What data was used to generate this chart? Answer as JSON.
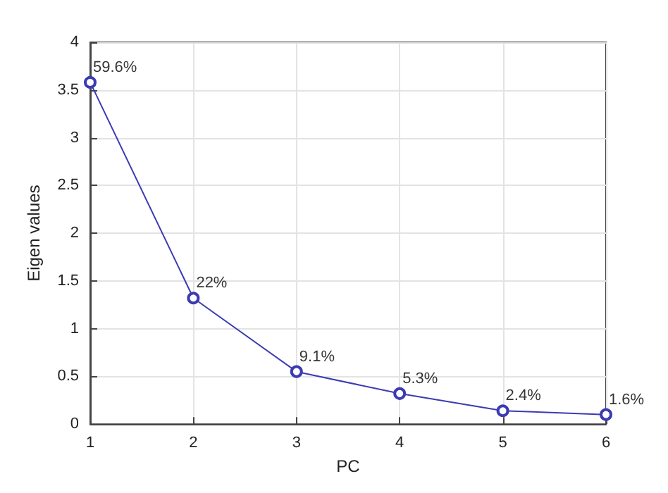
{
  "chart_data": {
    "type": "line",
    "xlabel": "PC",
    "ylabel": "Eigen values",
    "x": [
      1,
      2,
      3,
      4,
      5,
      6
    ],
    "series": [
      {
        "color": "#3b3bb3",
        "values": [
          3.58,
          1.32,
          0.55,
          0.32,
          0.14,
          0.1
        ]
      }
    ],
    "annotations": [
      {
        "text": "59.6%",
        "x": 1,
        "y": 3.58
      },
      {
        "text": "22%",
        "x": 2,
        "y": 1.32
      },
      {
        "text": "9.1%",
        "x": 3,
        "y": 0.55
      },
      {
        "text": "5.3%",
        "x": 4,
        "y": 0.32
      },
      {
        "text": "2.4%",
        "x": 5,
        "y": 0.14
      },
      {
        "text": "1.6%",
        "x": 6,
        "y": 0.1
      }
    ],
    "xlim": [
      1,
      6
    ],
    "xticks": [
      1,
      2,
      3,
      4,
      5,
      6
    ],
    "ylim": [
      0,
      4
    ],
    "yticks": [
      0,
      0.5,
      1,
      1.5,
      2,
      2.5,
      3,
      3.5,
      4
    ],
    "grid": true,
    "marker": "circle",
    "line_style": "solid"
  }
}
